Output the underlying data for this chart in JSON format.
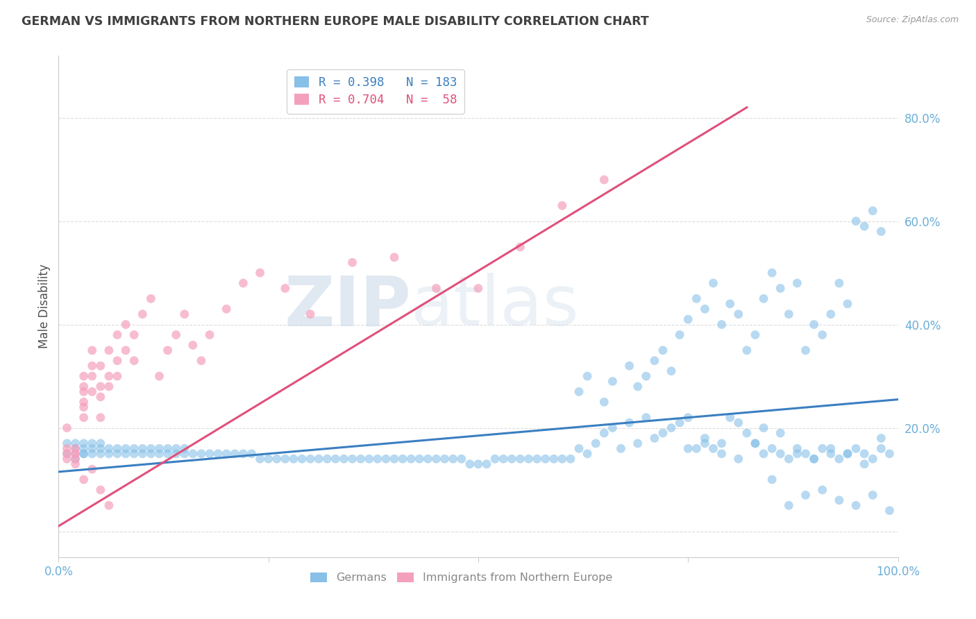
{
  "title": "GERMAN VS IMMIGRANTS FROM NORTHERN EUROPE MALE DISABILITY CORRELATION CHART",
  "source": "Source: ZipAtlas.com",
  "ylabel": "Male Disability",
  "watermark_zip": "ZIP",
  "watermark_atlas": "atlas",
  "blue_R": 0.398,
  "blue_N": 183,
  "pink_R": 0.704,
  "pink_N": 58,
  "blue_color": "#88c0e8",
  "pink_color": "#f4a0bc",
  "blue_line_color": "#3a7fc1",
  "pink_line_color": "#e0507a",
  "legend_blue_label": "Germans",
  "legend_pink_label": "Immigrants from Northern Europe",
  "xlim": [
    0.0,
    1.0
  ],
  "ylim": [
    -0.05,
    0.92
  ],
  "xticks": [
    0.0,
    0.25,
    0.5,
    0.75,
    1.0
  ],
  "xtick_labels": [
    "0.0%",
    "",
    "",
    "",
    "100.0%"
  ],
  "ytick_positions": [
    0.0,
    0.2,
    0.4,
    0.6,
    0.8
  ],
  "ytick_labels": [
    "",
    "20.0%",
    "40.0%",
    "60.0%",
    "80.0%"
  ],
  "blue_x": [
    0.01,
    0.01,
    0.02,
    0.02,
    0.02,
    0.03,
    0.03,
    0.03,
    0.03,
    0.04,
    0.04,
    0.04,
    0.05,
    0.05,
    0.05,
    0.06,
    0.06,
    0.07,
    0.07,
    0.08,
    0.08,
    0.09,
    0.09,
    0.1,
    0.1,
    0.11,
    0.11,
    0.12,
    0.12,
    0.13,
    0.13,
    0.14,
    0.14,
    0.15,
    0.15,
    0.16,
    0.17,
    0.18,
    0.19,
    0.2,
    0.21,
    0.22,
    0.23,
    0.24,
    0.25,
    0.26,
    0.27,
    0.28,
    0.29,
    0.3,
    0.31,
    0.32,
    0.33,
    0.34,
    0.35,
    0.36,
    0.37,
    0.38,
    0.39,
    0.4,
    0.41,
    0.42,
    0.43,
    0.44,
    0.45,
    0.46,
    0.47,
    0.48,
    0.49,
    0.5,
    0.51,
    0.52,
    0.53,
    0.54,
    0.55,
    0.56,
    0.57,
    0.58,
    0.59,
    0.6,
    0.61,
    0.62,
    0.63,
    0.64,
    0.65,
    0.66,
    0.67,
    0.68,
    0.69,
    0.7,
    0.71,
    0.72,
    0.73,
    0.74,
    0.75,
    0.76,
    0.77,
    0.78,
    0.79,
    0.8,
    0.81,
    0.82,
    0.83,
    0.84,
    0.85,
    0.86,
    0.87,
    0.88,
    0.89,
    0.9,
    0.91,
    0.92,
    0.93,
    0.94,
    0.95,
    0.96,
    0.97,
    0.98,
    0.99,
    0.62,
    0.63,
    0.65,
    0.66,
    0.68,
    0.69,
    0.7,
    0.71,
    0.72,
    0.73,
    0.74,
    0.75,
    0.76,
    0.77,
    0.78,
    0.79,
    0.8,
    0.81,
    0.82,
    0.83,
    0.84,
    0.85,
    0.86,
    0.87,
    0.88,
    0.89,
    0.9,
    0.91,
    0.92,
    0.93,
    0.94,
    0.95,
    0.96,
    0.97,
    0.98,
    0.85,
    0.87,
    0.89,
    0.91,
    0.93,
    0.95,
    0.97,
    0.99,
    0.75,
    0.77,
    0.79,
    0.81,
    0.83,
    0.84,
    0.86,
    0.88,
    0.9,
    0.92,
    0.94,
    0.96,
    0.98
  ],
  "blue_y": [
    0.15,
    0.17,
    0.14,
    0.16,
    0.17,
    0.15,
    0.16,
    0.15,
    0.17,
    0.15,
    0.16,
    0.17,
    0.15,
    0.16,
    0.17,
    0.15,
    0.16,
    0.15,
    0.16,
    0.15,
    0.16,
    0.15,
    0.16,
    0.15,
    0.16,
    0.15,
    0.16,
    0.15,
    0.16,
    0.15,
    0.16,
    0.15,
    0.16,
    0.15,
    0.16,
    0.15,
    0.15,
    0.15,
    0.15,
    0.15,
    0.15,
    0.15,
    0.15,
    0.14,
    0.14,
    0.14,
    0.14,
    0.14,
    0.14,
    0.14,
    0.14,
    0.14,
    0.14,
    0.14,
    0.14,
    0.14,
    0.14,
    0.14,
    0.14,
    0.14,
    0.14,
    0.14,
    0.14,
    0.14,
    0.14,
    0.14,
    0.14,
    0.14,
    0.13,
    0.13,
    0.13,
    0.14,
    0.14,
    0.14,
    0.14,
    0.14,
    0.14,
    0.14,
    0.14,
    0.14,
    0.14,
    0.16,
    0.15,
    0.17,
    0.19,
    0.2,
    0.16,
    0.21,
    0.17,
    0.22,
    0.18,
    0.19,
    0.2,
    0.21,
    0.22,
    0.16,
    0.17,
    0.16,
    0.17,
    0.22,
    0.21,
    0.19,
    0.17,
    0.15,
    0.16,
    0.15,
    0.14,
    0.16,
    0.15,
    0.14,
    0.16,
    0.15,
    0.14,
    0.15,
    0.16,
    0.15,
    0.14,
    0.16,
    0.15,
    0.27,
    0.3,
    0.25,
    0.29,
    0.32,
    0.28,
    0.3,
    0.33,
    0.35,
    0.31,
    0.38,
    0.41,
    0.45,
    0.43,
    0.48,
    0.4,
    0.44,
    0.42,
    0.35,
    0.38,
    0.45,
    0.5,
    0.47,
    0.42,
    0.48,
    0.35,
    0.4,
    0.38,
    0.42,
    0.48,
    0.44,
    0.6,
    0.59,
    0.62,
    0.58,
    0.1,
    0.05,
    0.07,
    0.08,
    0.06,
    0.05,
    0.07,
    0.04,
    0.16,
    0.18,
    0.15,
    0.14,
    0.17,
    0.2,
    0.19,
    0.15,
    0.14,
    0.16,
    0.15,
    0.13,
    0.18
  ],
  "pink_x": [
    0.01,
    0.01,
    0.01,
    0.01,
    0.02,
    0.02,
    0.02,
    0.02,
    0.02,
    0.03,
    0.03,
    0.03,
    0.03,
    0.03,
    0.03,
    0.04,
    0.04,
    0.04,
    0.04,
    0.05,
    0.05,
    0.05,
    0.05,
    0.06,
    0.06,
    0.06,
    0.07,
    0.07,
    0.07,
    0.08,
    0.08,
    0.09,
    0.09,
    0.1,
    0.11,
    0.12,
    0.13,
    0.14,
    0.15,
    0.16,
    0.17,
    0.18,
    0.2,
    0.22,
    0.24,
    0.27,
    0.3,
    0.35,
    0.4,
    0.45,
    0.5,
    0.55,
    0.6,
    0.65,
    0.03,
    0.04,
    0.05,
    0.06
  ],
  "pink_y": [
    0.14,
    0.16,
    0.2,
    0.15,
    0.13,
    0.15,
    0.14,
    0.16,
    0.15,
    0.22,
    0.25,
    0.27,
    0.3,
    0.28,
    0.24,
    0.3,
    0.27,
    0.32,
    0.35,
    0.28,
    0.32,
    0.22,
    0.26,
    0.3,
    0.35,
    0.28,
    0.33,
    0.38,
    0.3,
    0.4,
    0.35,
    0.38,
    0.33,
    0.42,
    0.45,
    0.3,
    0.35,
    0.38,
    0.42,
    0.36,
    0.33,
    0.38,
    0.43,
    0.48,
    0.5,
    0.47,
    0.42,
    0.52,
    0.53,
    0.47,
    0.47,
    0.55,
    0.63,
    0.68,
    0.1,
    0.12,
    0.08,
    0.05
  ],
  "blue_line_x": [
    0.0,
    1.0
  ],
  "blue_line_y": [
    0.115,
    0.255
  ],
  "pink_line_x": [
    0.0,
    0.82
  ],
  "pink_line_y": [
    0.01,
    0.82
  ],
  "grid_color": "#dddddd",
  "title_color": "#404040",
  "tick_label_color": "#6baed6",
  "ylabel_color": "#505050",
  "background_color": "#ffffff"
}
